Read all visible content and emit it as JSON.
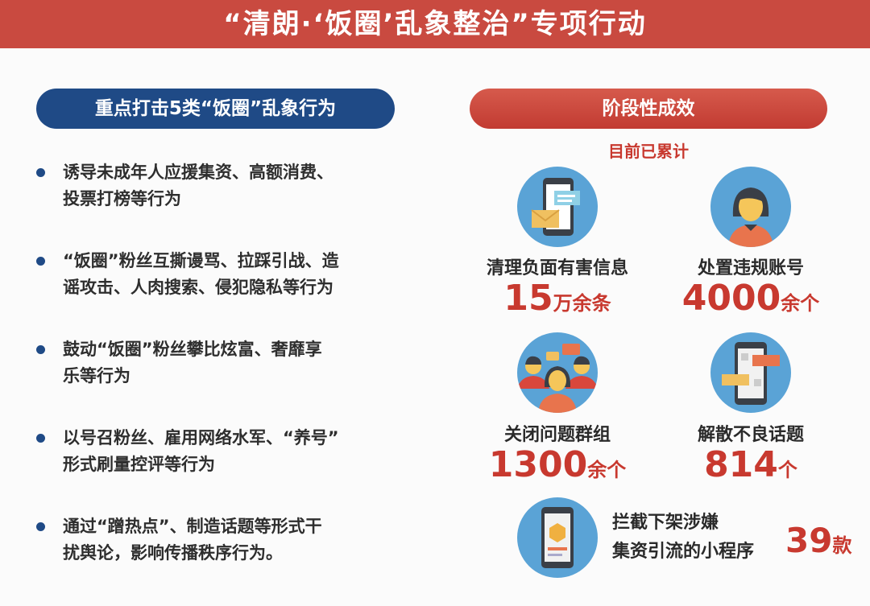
{
  "title": "“清朗·‘饭圈’乱象整治”专项行动",
  "left": {
    "heading": "重点打击5类“饭圈”乱象行为",
    "items": [
      [
        "诱导未成年人应援集资、高额消费、",
        "投票打榜等行为"
      ],
      [
        "“饭圈”粉丝互撕谩骂、拉踩引战、造",
        "谣攻击、人肉搜索、侵犯隐私等行为"
      ],
      [
        "鼓动“饭圈”粉丝攀比炫富、奢靡享",
        "乐等行为"
      ],
      [
        "以号召粉丝、雇用网络水军、“养号”",
        "形式刷量控评等行为"
      ],
      [
        "通过“蹭热点”、制造话题等形式干",
        "扰舆论，影响传播秩序行为。"
      ]
    ]
  },
  "right": {
    "heading": "阶段性成效",
    "subheading": "目前已累计",
    "stats": [
      {
        "label": "清理负面有害信息",
        "value": "15",
        "unit": "万余条",
        "icon": "phone-message-icon"
      },
      {
        "label": "处置违规账号",
        "value": "4000",
        "unit": "余个",
        "icon": "user-account-icon"
      },
      {
        "label": "关闭问题群组",
        "value": "1300",
        "unit": "余个",
        "icon": "group-chat-icon"
      },
      {
        "label": "解散不良话题",
        "value": "814",
        "unit": "个",
        "icon": "phone-chat-icon"
      }
    ],
    "last": {
      "lines": [
        "拦截下架涉嫌",
        "集资引流的小程序"
      ],
      "value": "39",
      "unit": "款",
      "icon": "mini-program-icon"
    }
  },
  "colors": {
    "banner": "#c94a40",
    "navy": "#1f4a86",
    "accent_red": "#c8392f",
    "icon_blue": "#5aa3d6"
  }
}
